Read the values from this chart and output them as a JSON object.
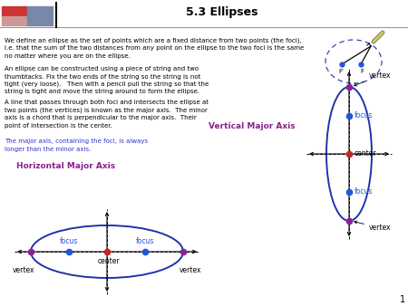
{
  "title": "5.3 Ellipses",
  "bg_color": "#ffffff",
  "text_color": "#000000",
  "blue_text_color": "#3333cc",
  "purple_text_color": "#882288",
  "ellipse_color": "#2233aa",
  "focus_color": "#2255dd",
  "center_color": "#cc2222",
  "vertex_color": "#882299",
  "dashed_ellipse_color": "#4455bb",
  "paragraph1": "We define an ellipse as the set of points which are a fixed distance from two points (the foci),\ni.e. that the sum of the two distances from any point on the ellipse to the two foci is the same\nno matter where you are on the ellipse.",
  "paragraph2": "An ellipse can be constructed using a piece of string and two\nthumbtacks. Fix the two ends of the string so the string is not\ntight (very loose).   Then with a pencil pull the string so that the\nstring is tight and move the string around to form the ellipse.",
  "paragraph3": "A line that passes through both foci and intersects the ellipse at\ntwo points (the vertices) is known as the major axis.  The minor\naxis is a chord that is perpendicular to the major axis.  Their\npoint of intersection is the center.",
  "paragraph4": "The major axis, containing the foci, is always\nlonger than the minor axis.",
  "horiz_label": "Horizontal Major Axis",
  "vert_label": "Vertical Major Axis",
  "page_num": "1"
}
